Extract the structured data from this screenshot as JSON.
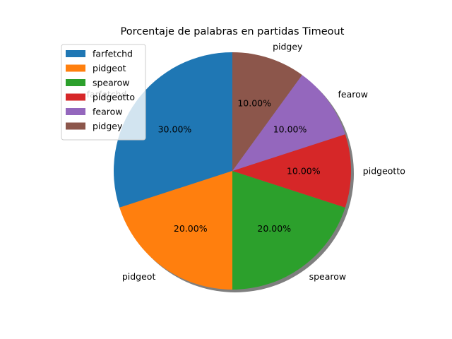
{
  "chart_data": {
    "type": "pie",
    "title": "Porcentaje de palabras en partidas Timeout",
    "start_angle_deg": 90,
    "shadow": true,
    "legend_placement": "upper-left",
    "slices": [
      {
        "label": "farfetchd",
        "value": 30,
        "pct_text": "30.00%",
        "color": "#1f77b4"
      },
      {
        "label": "pidgeot",
        "value": 20,
        "pct_text": "20.00%",
        "color": "#ff7f0e"
      },
      {
        "label": "spearow",
        "value": 20,
        "pct_text": "20.00%",
        "color": "#2ca02c"
      },
      {
        "label": "pidgeotto",
        "value": 10,
        "pct_text": "10.00%",
        "color": "#d62728"
      },
      {
        "label": "fearow",
        "value": 10,
        "pct_text": "10.00%",
        "color": "#9467bd"
      },
      {
        "label": "pidgey",
        "value": 10,
        "pct_text": "10.00%",
        "color": "#8c564b"
      }
    ]
  }
}
